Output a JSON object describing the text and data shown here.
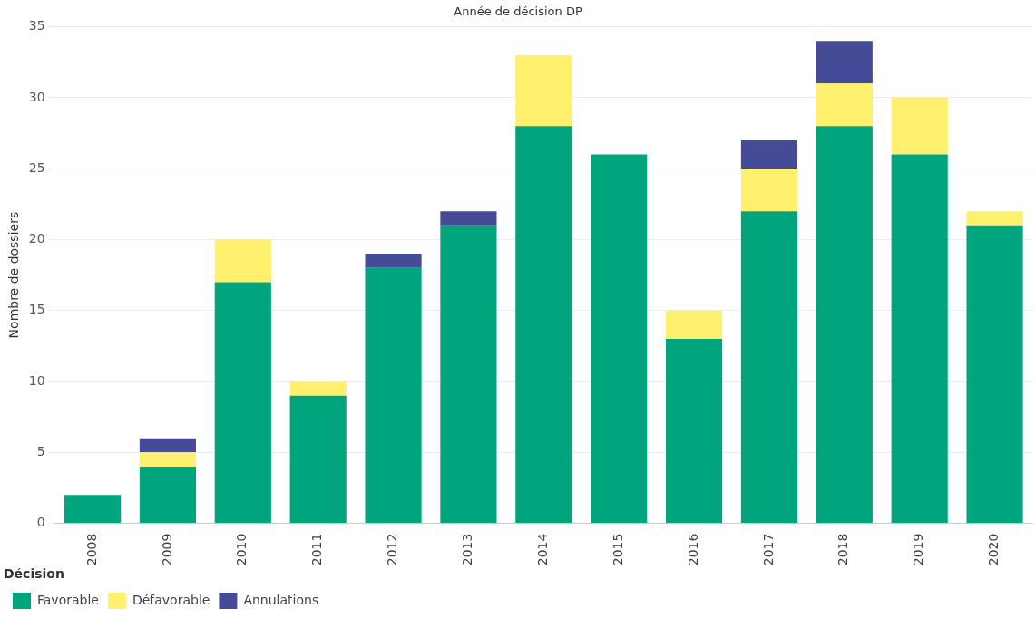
{
  "chart_data": {
    "type": "bar",
    "title": "Année de décision DP",
    "ylabel": "Nombre de dossiers",
    "legend_title": "Décision",
    "stacked": true,
    "grid": "y",
    "legend": "bottom left",
    "categories": [
      "2008",
      "2009",
      "2010",
      "2011",
      "2012",
      "2013",
      "2014",
      "2015",
      "2016",
      "2017",
      "2018",
      "2019",
      "2020"
    ],
    "ylim": [
      0,
      35
    ],
    "yticks": [
      0,
      5,
      10,
      15,
      20,
      25,
      30,
      35
    ],
    "series": [
      {
        "name": "Favorable",
        "color": "#00a57e",
        "values": [
          2,
          4,
          17,
          9,
          18,
          21,
          28,
          26,
          13,
          22,
          28,
          26,
          21
        ]
      },
      {
        "name": "Défavorable",
        "color": "#fff06e",
        "values": [
          0,
          1,
          3,
          1,
          0,
          0,
          5,
          0,
          2,
          3,
          3,
          4,
          1
        ]
      },
      {
        "name": "Annulations",
        "color": "#454b96",
        "values": [
          0,
          1,
          0,
          0,
          1,
          1,
          0,
          0,
          0,
          2,
          3,
          0,
          0
        ]
      }
    ]
  }
}
